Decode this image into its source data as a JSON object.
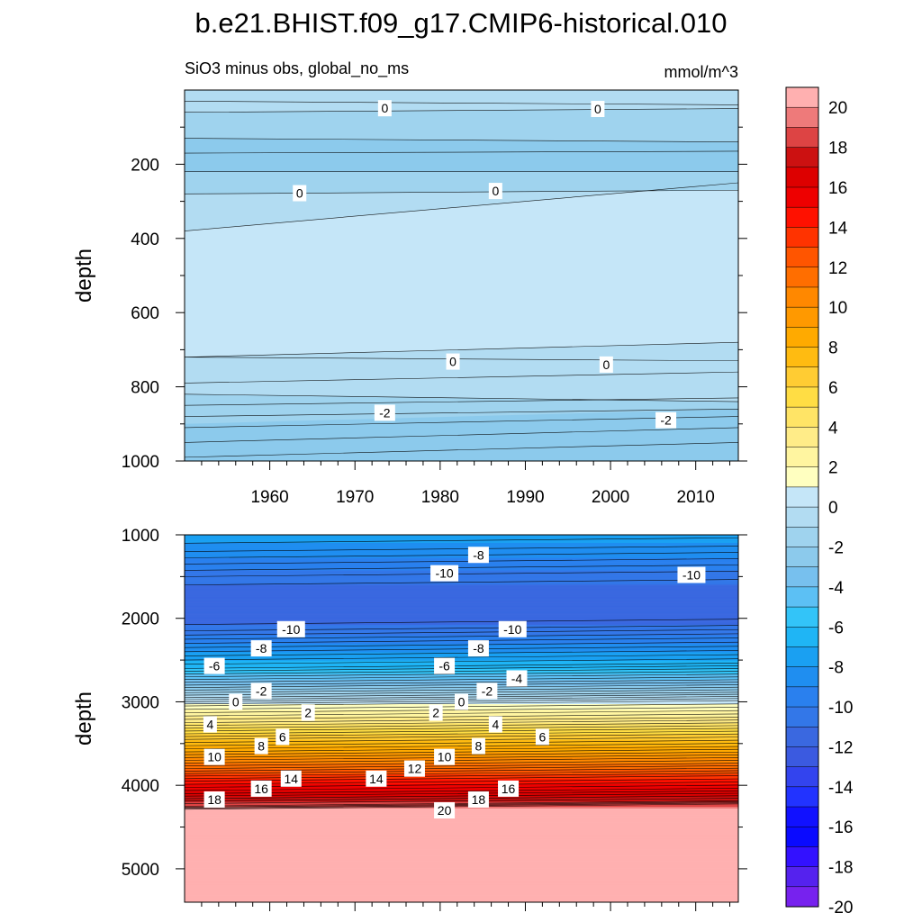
{
  "title": "b.e21.BHIST.f09_g17.CMIP6-historical.010",
  "chart_data": [
    {
      "type": "heatmap",
      "panel": "upper",
      "left_string": "SiO3 minus obs, global_no_ms",
      "right_string": "mmol/m^3",
      "ylabel": "depth",
      "xlim": [
        1950,
        2015
      ],
      "ylim": [
        0,
        1000
      ],
      "y_reversed": true,
      "xticks": [
        1960,
        1970,
        1980,
        1990,
        2000,
        2010
      ],
      "xtick_labels": [
        "1960",
        "1970",
        "1980",
        "1990",
        "2000",
        "2010"
      ],
      "yticks": [
        200,
        400,
        600,
        800,
        1000
      ],
      "ytick_labels": [
        "200",
        "400",
        "600",
        "800",
        "1000"
      ],
      "bands": [
        {
          "level": 0,
          "bounds": [
            [
              40,
              30
            ],
            [
              720,
              730
            ]
          ]
        },
        {
          "level": 1,
          "bounds": [
            [
              380,
              250
            ],
            [
              720,
              680
            ]
          ]
        },
        {
          "level": -1,
          "bounds": [
            [
              60,
              50
            ],
            [
              280,
              270
            ]
          ]
        },
        {
          "level": -1,
          "bounds": [
            [
              820,
              840
            ],
            [
              1000,
              1000
            ]
          ]
        },
        {
          "level": -2,
          "bounds": [
            [
              130,
              140
            ],
            [
              220,
              220
            ]
          ]
        },
        {
          "level": -2,
          "bounds": [
            [
              900,
              860
            ],
            [
              1000,
              1000
            ]
          ]
        }
      ],
      "contour_depths": [
        [
          30,
          40
        ],
        [
          60,
          50
        ],
        [
          130,
          140
        ],
        [
          170,
          165
        ],
        [
          220,
          220
        ],
        [
          280,
          270
        ],
        [
          380,
          250
        ],
        [
          720,
          680
        ],
        [
          720,
          730
        ],
        [
          790,
          760
        ],
        [
          820,
          840
        ],
        [
          850,
          830
        ],
        [
          880,
          860
        ],
        [
          910,
          880
        ],
        [
          950,
          910
        ],
        [
          990,
          950
        ]
      ],
      "contour_labels": [
        {
          "text": "0",
          "x": 1973.5,
          "y": 49
        },
        {
          "text": "0",
          "x": 1998.5,
          "y": 51
        },
        {
          "text": "0",
          "x": 1963.5,
          "y": 278
        },
        {
          "text": "0",
          "x": 1986.5,
          "y": 272
        },
        {
          "text": "0",
          "x": 1981.5,
          "y": 732
        },
        {
          "text": "0",
          "x": 1999.5,
          "y": 740
        },
        {
          "text": "-2",
          "x": 1973.5,
          "y": 870
        },
        {
          "text": "-2",
          "x": 2006.5,
          "y": 890
        }
      ]
    },
    {
      "type": "heatmap",
      "panel": "lower",
      "ylabel": "depth",
      "xlim": [
        1950,
        2015
      ],
      "ylim": [
        1000,
        5400
      ],
      "y_reversed": true,
      "yticks": [
        1000,
        2000,
        3000,
        4000,
        5000
      ],
      "ytick_labels": [
        "1000",
        "2000",
        "3000",
        "4000",
        "5000"
      ],
      "profile": [
        {
          "depth": 1000,
          "value": -7.5
        },
        {
          "depth": 1200,
          "value": -8.5
        },
        {
          "depth": 1500,
          "value": -10.5
        },
        {
          "depth": 1700,
          "value": -11.5
        },
        {
          "depth": 2000,
          "value": -11.5
        },
        {
          "depth": 2150,
          "value": -10.5
        },
        {
          "depth": 2400,
          "value": -8
        },
        {
          "depth": 2600,
          "value": -6
        },
        {
          "depth": 2800,
          "value": -3
        },
        {
          "depth": 2950,
          "value": -0.5
        },
        {
          "depth": 3050,
          "value": 1.5
        },
        {
          "depth": 3250,
          "value": 4
        },
        {
          "depth": 3450,
          "value": 7
        },
        {
          "depth": 3600,
          "value": 9
        },
        {
          "depth": 3800,
          "value": 12
        },
        {
          "depth": 3950,
          "value": 14.5
        },
        {
          "depth": 4100,
          "value": 16.5
        },
        {
          "depth": 4250,
          "value": 19
        },
        {
          "depth": 4300,
          "value": 21
        },
        {
          "depth": 5400,
          "value": 21
        }
      ],
      "drift_per_decade": -10,
      "contour_labels": [
        {
          "text": "-8",
          "x": 1984.5,
          "y": 1240
        },
        {
          "text": "-10",
          "x": 1980.5,
          "y": 1460
        },
        {
          "text": "-10",
          "x": 2009.5,
          "y": 1480
        },
        {
          "text": "-10",
          "x": 1962.5,
          "y": 2130
        },
        {
          "text": "-10",
          "x": 1988.5,
          "y": 2130
        },
        {
          "text": "-8",
          "x": 1959,
          "y": 2360
        },
        {
          "text": "-8",
          "x": 1984.5,
          "y": 2360
        },
        {
          "text": "-6",
          "x": 1953.5,
          "y": 2570
        },
        {
          "text": "-6",
          "x": 1980.5,
          "y": 2570
        },
        {
          "text": "-4",
          "x": 1989,
          "y": 2720
        },
        {
          "text": "-2",
          "x": 1959,
          "y": 2870
        },
        {
          "text": "-2",
          "x": 1985.5,
          "y": 2870
        },
        {
          "text": "0",
          "x": 1956,
          "y": 3000
        },
        {
          "text": "0",
          "x": 1982.5,
          "y": 3000
        },
        {
          "text": "2",
          "x": 1964.5,
          "y": 3130
        },
        {
          "text": "2",
          "x": 1979.5,
          "y": 3130
        },
        {
          "text": "4",
          "x": 1953,
          "y": 3270
        },
        {
          "text": "4",
          "x": 1986.5,
          "y": 3270
        },
        {
          "text": "6",
          "x": 1961.5,
          "y": 3420
        },
        {
          "text": "6",
          "x": 1992,
          "y": 3420
        },
        {
          "text": "8",
          "x": 1959,
          "y": 3530
        },
        {
          "text": "8",
          "x": 1984.5,
          "y": 3530
        },
        {
          "text": "10",
          "x": 1953.5,
          "y": 3660
        },
        {
          "text": "10",
          "x": 1980.5,
          "y": 3660
        },
        {
          "text": "12",
          "x": 1977,
          "y": 3800
        },
        {
          "text": "14",
          "x": 1962.5,
          "y": 3920
        },
        {
          "text": "14",
          "x": 1972.5,
          "y": 3920
        },
        {
          "text": "16",
          "x": 1959,
          "y": 4040
        },
        {
          "text": "16",
          "x": 1988,
          "y": 4040
        },
        {
          "text": "18",
          "x": 1953.5,
          "y": 4170
        },
        {
          "text": "18",
          "x": 1984.5,
          "y": 4170
        },
        {
          "text": "20",
          "x": 1980.5,
          "y": 4300
        }
      ]
    }
  ],
  "colorbar": {
    "labels": [
      "20",
      "18",
      "16",
      "14",
      "12",
      "10",
      "8",
      "6",
      "4",
      "2",
      "0",
      "-2",
      "-4",
      "-6",
      "-8",
      "-10",
      "-12",
      "-14",
      "-16",
      "-18",
      "-20"
    ],
    "colors": [
      "#ffb0b0",
      "#ee7a7a",
      "#dd4444",
      "#cc1111",
      "#dd0000",
      "#ee0000",
      "#ff1100",
      "#ff3300",
      "#ff5500",
      "#ff6e00",
      "#ff8800",
      "#ff9900",
      "#ffaa00",
      "#ffbb11",
      "#ffcc33",
      "#ffdd44",
      "#ffe466",
      "#ffec88",
      "#fff5a0",
      "#ffffc0",
      "#c5e6f8",
      "#b2dcf2",
      "#9fd3ee",
      "#8ccaec",
      "#77c0ee",
      "#5cc0f4",
      "#33c4f8",
      "#1fb5f5",
      "#1aa0f2",
      "#1f8ef0",
      "#2a80ee",
      "#3377e8",
      "#3a68e0",
      "#3b5ae0",
      "#3344ee",
      "#2233ff",
      "#1111ff",
      "#0a0aff",
      "#3311ff",
      "#5522ee",
      "#7722ee"
    ]
  }
}
